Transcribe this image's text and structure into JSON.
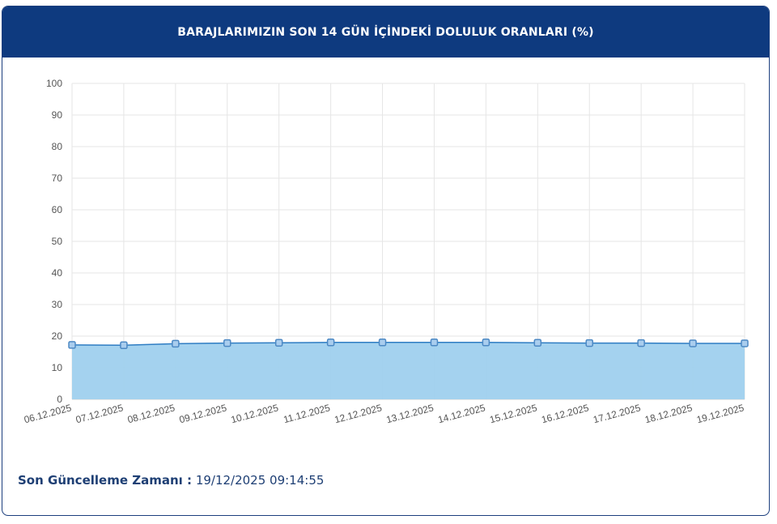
{
  "header": {
    "title": "BARAJLARIMIZIN SON 14 GÜN İÇİNDEKİ DOLULUK ORANLARI (%)"
  },
  "footer": {
    "label": "Son Güncelleme Zamanı :",
    "value": "19/12/2025 09:14:55"
  },
  "colors": {
    "header_bg": "#0e3a7f",
    "line": "#2f7dc3",
    "fill": "#9fd0ee",
    "marker": "#4d89c4",
    "grid": "#e6e6e6"
  },
  "chart_data": {
    "type": "area",
    "title": "BARAJLARIMIZIN SON 14 GÜN İÇİNDEKİ DOLULUK ORANLARI (%)",
    "categories": [
      "06.12.2025",
      "07.12.2025",
      "08.12.2025",
      "09.12.2025",
      "10.12.2025",
      "11.12.2025",
      "12.12.2025",
      "13.12.2025",
      "14.12.2025",
      "15.12.2025",
      "16.12.2025",
      "17.12.2025",
      "18.12.2025",
      "19.12.2025"
    ],
    "series": [
      {
        "values": [
          17.2,
          17.1,
          17.6,
          17.8,
          17.9,
          18.0,
          18.0,
          18.0,
          18.0,
          17.9,
          17.8,
          17.8,
          17.7,
          17.7
        ]
      }
    ],
    "ylim": [
      0,
      100
    ],
    "yticks": [
      "0",
      "10",
      "20",
      "30",
      "40",
      "50",
      "60",
      "70",
      "80",
      "90",
      "100"
    ],
    "grid": true,
    "legend": "none"
  }
}
